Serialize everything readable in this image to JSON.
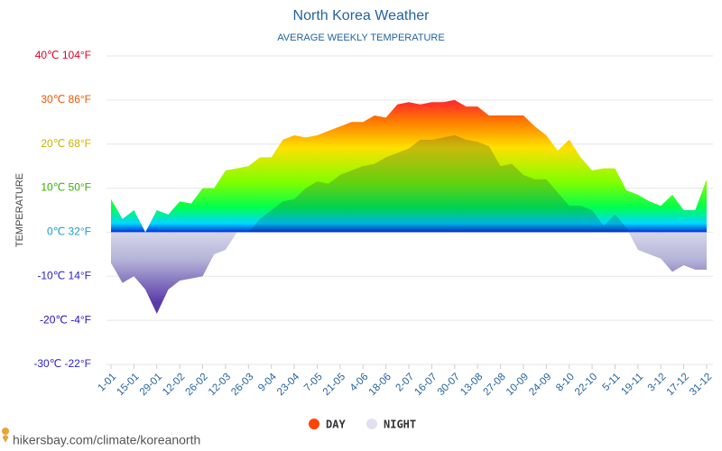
{
  "chart_data": {
    "type": "area",
    "title": "North Korea Weather",
    "subtitle": "AVERAGE WEEKLY TEMPERATURE",
    "y_axis_label": "TEMPERATURE",
    "footer": "hikersbay.com/climate/koreanorth",
    "categories": [
      "1-01",
      null,
      "15-01",
      null,
      "29-01",
      null,
      "12-02",
      null,
      "26-02",
      null,
      "12-03",
      null,
      "26-03",
      null,
      "9-04",
      null,
      "23-04",
      null,
      "7-05",
      null,
      "21-05",
      null,
      "4-06",
      null,
      "18-06",
      null,
      "2-07",
      null,
      "16-07",
      null,
      "30-07",
      null,
      "13-08",
      null,
      "27-08",
      null,
      "10-09",
      null,
      "24-09",
      null,
      "8-10",
      null,
      "22-10",
      null,
      "5-11",
      null,
      "19-11",
      null,
      "3-12",
      null,
      "17-12",
      null,
      "31-12"
    ],
    "series": [
      {
        "name": "DAY",
        "color": "#ff4500",
        "values": [
          7.5,
          3,
          5,
          0,
          5,
          4,
          7,
          6.5,
          10,
          10,
          14,
          14.5,
          15,
          17,
          17,
          21,
          22,
          21.5,
          22,
          23,
          24,
          25,
          25,
          26.5,
          26,
          29,
          29.5,
          29,
          29.5,
          29.5,
          30,
          28.5,
          28.5,
          26.5,
          26.5,
          26.5,
          26.5,
          24,
          22,
          18.5,
          21,
          17,
          14,
          14.5,
          14.5,
          9.5,
          8.5,
          7,
          6,
          8.5,
          5,
          5,
          12
        ]
      },
      {
        "name": "NIGHT",
        "color": "#e0e0f0",
        "values": [
          -7,
          -11.5,
          -10,
          -13,
          -18.5,
          -13,
          -11,
          -10.5,
          -10,
          -5,
          -4,
          0,
          0,
          3,
          5,
          7,
          7.5,
          10,
          11.5,
          11,
          13,
          14,
          15,
          15.5,
          17,
          18,
          19,
          21,
          21,
          21.5,
          22,
          21,
          20.5,
          19.5,
          15,
          15.5,
          13,
          12,
          12,
          9,
          6,
          6,
          5,
          1.5,
          4,
          1,
          -4,
          -5,
          -6,
          -9,
          -7.5,
          -8.5,
          -8.5
        ]
      }
    ],
    "ylim": [
      -30,
      40
    ],
    "yticks": [
      {
        "value": -30,
        "label": "-30℃ -22°F"
      },
      {
        "value": -20,
        "label": "-20℃ -4°F"
      },
      {
        "value": -10,
        "label": "-10℃ 14°F"
      },
      {
        "value": 0,
        "label": "0℃ 32°F"
      },
      {
        "value": 10,
        "label": "10℃ 50°F"
      },
      {
        "value": 20,
        "label": "20℃ 68°F"
      },
      {
        "value": 30,
        "label": "30℃ 86°F"
      },
      {
        "value": 40,
        "label": "40℃ 104°F"
      }
    ],
    "ytick_colors": [
      "#2a1fd0",
      "#2a10c0",
      "#2a20c8",
      "#1a9ad0",
      "#3ab000",
      "#c8b400",
      "#ee5500",
      "#e0002a"
    ],
    "grid": true
  }
}
